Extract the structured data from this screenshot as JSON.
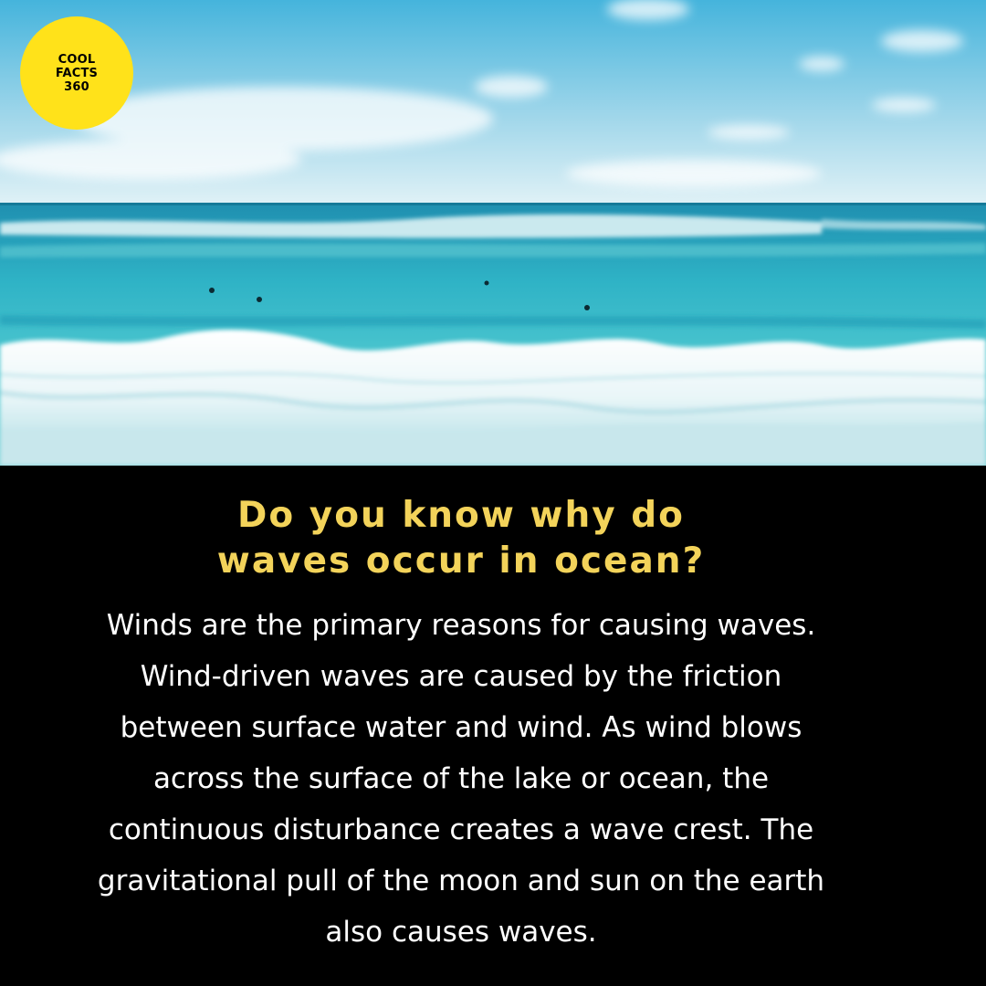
{
  "logo": {
    "line1": "COOL",
    "line2": "FACTS",
    "line3": "360",
    "color": "#ffe21a"
  },
  "photo": {
    "subject": "ocean-waves-beach-photo"
  },
  "headline": {
    "line1": "Do you know why do",
    "line2": "waves occur in ocean?",
    "color": "#f3d35a"
  },
  "body": {
    "lines": [
      "Winds are the primary reasons for causing waves.",
      "Wind-driven waves are caused by the friction",
      "between surface water and wind. As wind blows",
      "across the surface of the lake or ocean, the",
      "continuous disturbance creates a wave crest. The",
      "gravitational pull of the moon and sun on the earth",
      "also causes waves."
    ]
  }
}
